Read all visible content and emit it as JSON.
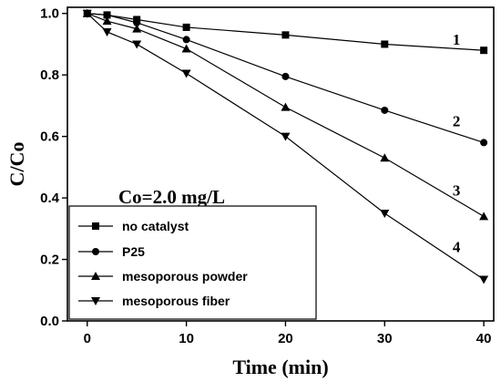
{
  "chart_data": {
    "type": "line",
    "title": "",
    "xlabel": "Time (min)",
    "ylabel": "C/Co",
    "xlim": [
      -2,
      41
    ],
    "ylim": [
      0,
      1.02
    ],
    "x_ticks": [
      0,
      10,
      20,
      30,
      40
    ],
    "x_tick_labels": [
      "0",
      "10",
      "20",
      "30",
      "40"
    ],
    "y_ticks": [
      0.0,
      0.2,
      0.4,
      0.6,
      0.8,
      1.0
    ],
    "y_tick_labels": [
      "0.0",
      "0.2",
      "0.4",
      "0.6",
      "0.8",
      "1.0"
    ],
    "grid": false,
    "legend_position": "bottom-left",
    "annotation": "Co=2.0 mg/L",
    "series": [
      {
        "name": "no catalyst",
        "marker": "square",
        "curve_label": "1",
        "x": [
          0,
          2,
          5,
          10,
          20,
          30,
          40
        ],
        "y": [
          1.0,
          0.995,
          0.98,
          0.955,
          0.93,
          0.9,
          0.88
        ]
      },
      {
        "name": "P25",
        "marker": "circle",
        "curve_label": "2",
        "x": [
          0,
          2,
          5,
          10,
          20,
          30,
          40
        ],
        "y": [
          1.0,
          0.995,
          0.97,
          0.915,
          0.795,
          0.685,
          0.58
        ]
      },
      {
        "name": "mesoporous powder",
        "marker": "triangle-up",
        "curve_label": "3",
        "x": [
          0,
          2,
          5,
          10,
          20,
          30,
          40
        ],
        "y": [
          1.0,
          0.975,
          0.95,
          0.885,
          0.695,
          0.53,
          0.34
        ]
      },
      {
        "name": "mesoporous fiber",
        "marker": "triangle-down",
        "curve_label": "4",
        "x": [
          0,
          2,
          5,
          10,
          20,
          30,
          40
        ],
        "y": [
          1.0,
          0.94,
          0.9,
          0.805,
          0.6,
          0.35,
          0.135
        ]
      }
    ]
  }
}
